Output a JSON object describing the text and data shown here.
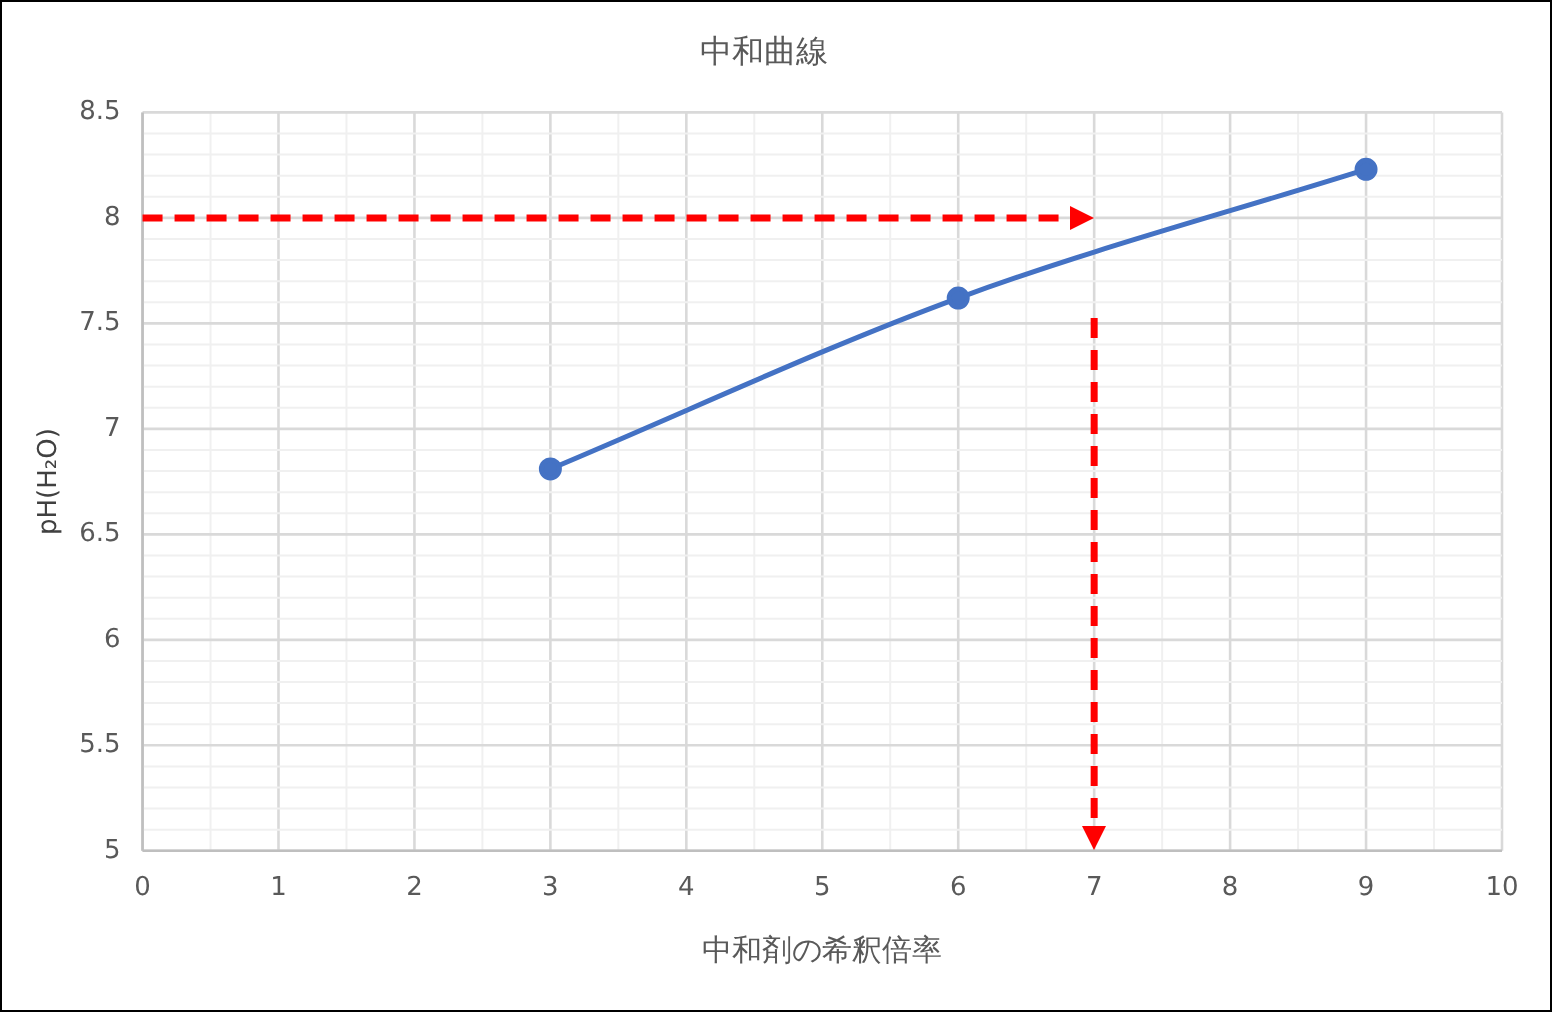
{
  "chart_data": {
    "type": "line",
    "title": "中和曲線",
    "xlabel": "中和剤の希釈倍率",
    "ylabel": "pH(H₂O)",
    "x": [
      3,
      6,
      9
    ],
    "series": [
      {
        "color": "#4472c4",
        "values": [
          6.81,
          7.62,
          8.23
        ]
      }
    ],
    "xlim": [
      0,
      10
    ],
    "xticks": [
      0,
      1,
      2,
      3,
      4,
      5,
      6,
      7,
      8,
      9,
      10
    ],
    "ylim": [
      5,
      8.5
    ],
    "yticks": [
      5,
      5.5,
      6,
      6.5,
      7,
      7.5,
      8,
      8.5
    ],
    "grid": true,
    "marker": "circle",
    "line_style": "solid",
    "legend": false,
    "ref_lines": [
      {
        "axis": "y",
        "value": 8,
        "color": "#ff0000",
        "line_style": "dashed"
      },
      {
        "axis": "x",
        "value": 7,
        "color": "#ff0000",
        "line_style": "dashed"
      }
    ]
  }
}
